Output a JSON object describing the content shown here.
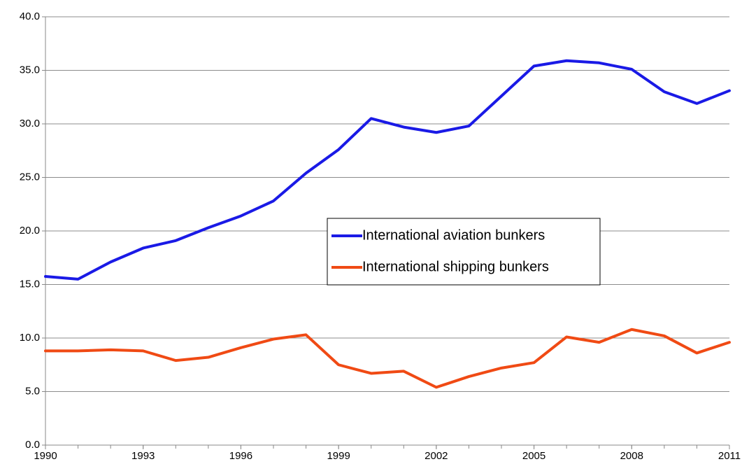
{
  "chart_data": {
    "type": "line",
    "x": [
      1990,
      1991,
      1992,
      1993,
      1994,
      1995,
      1996,
      1997,
      1998,
      1999,
      2000,
      2001,
      2002,
      2003,
      2004,
      2005,
      2006,
      2007,
      2008,
      2009,
      2010,
      2011
    ],
    "series": [
      {
        "name": "International aviation bunkers",
        "color": "#1a1ae6",
        "values": [
          15.75,
          15.5,
          17.1,
          18.4,
          19.1,
          20.3,
          21.4,
          22.8,
          25.4,
          27.6,
          30.5,
          29.7,
          29.2,
          29.8,
          32.6,
          35.4,
          35.9,
          35.7,
          35.1,
          33.0,
          31.9,
          33.1
        ]
      },
      {
        "name": "International shipping bunkers",
        "color": "#f04a14",
        "values": [
          8.8,
          8.8,
          8.9,
          8.8,
          7.9,
          8.2,
          9.1,
          9.9,
          10.3,
          7.5,
          6.7,
          6.9,
          5.4,
          6.4,
          7.2,
          7.7,
          10.1,
          9.6,
          10.8,
          10.2,
          8.6,
          9.6
        ]
      }
    ],
    "xlim": [
      1990,
      2011
    ],
    "xticks": [
      1990,
      1993,
      1996,
      1999,
      2002,
      2005,
      2008,
      2011
    ],
    "ylim": [
      0,
      40
    ],
    "yticks": [
      {
        "value": 0,
        "label": "0.0"
      },
      {
        "value": 5,
        "label": "5.0"
      },
      {
        "value": 10,
        "label": "10.0"
      },
      {
        "value": 15,
        "label": "15.0"
      },
      {
        "value": 20,
        "label": "20.0"
      },
      {
        "value": 25,
        "label": "25.0"
      },
      {
        "value": 30,
        "label": "30.0"
      },
      {
        "value": 35,
        "label": "35.0"
      },
      {
        "value": 40,
        "label": "40.0"
      }
    ],
    "grid": true,
    "legend": "center"
  }
}
